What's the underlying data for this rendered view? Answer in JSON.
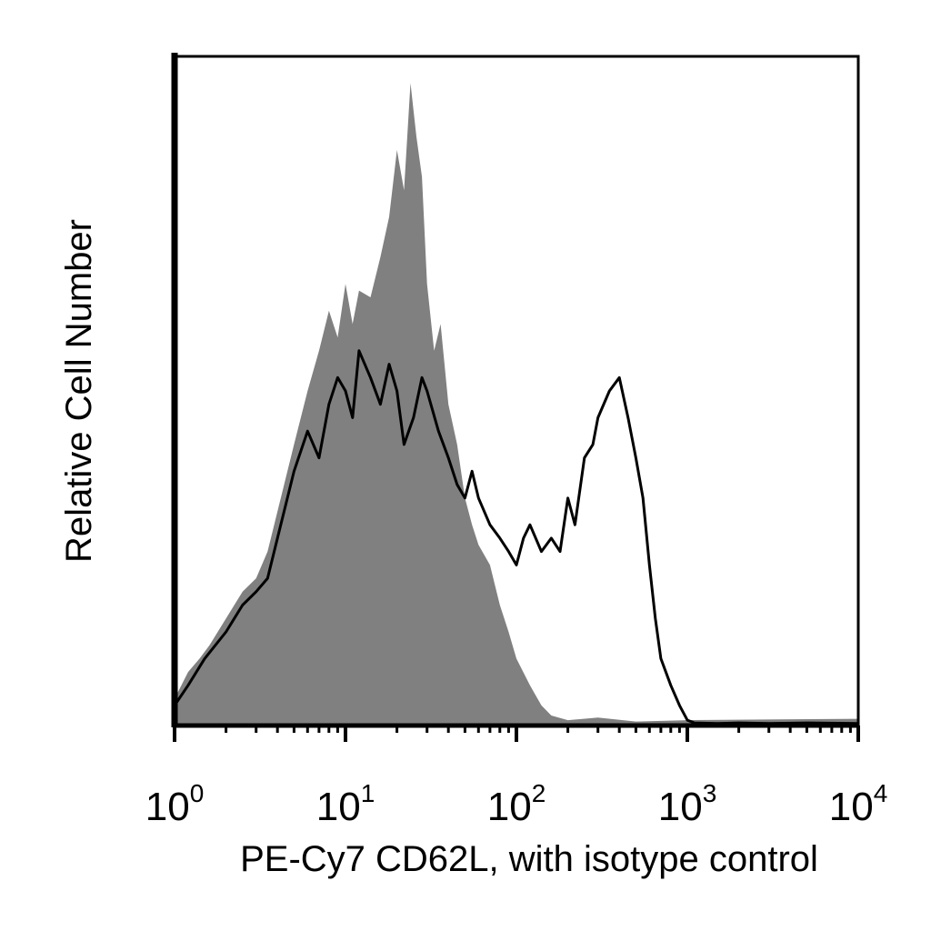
{
  "chart_data": {
    "type": "area",
    "xlabel": "PE-Cy7 CD62L, with isotype control",
    "ylabel": "Relative Cell Number",
    "x_scale": "log",
    "xlim": [
      1,
      10000
    ],
    "ylim": [
      0,
      1
    ],
    "grid": false,
    "x_ticks": [
      {
        "value": 1,
        "base": "10",
        "exp": "0"
      },
      {
        "value": 10,
        "base": "10",
        "exp": "1"
      },
      {
        "value": 100,
        "base": "10",
        "exp": "2"
      },
      {
        "value": 1000,
        "base": "10",
        "exp": "3"
      },
      {
        "value": 10000,
        "base": "10",
        "exp": "4"
      }
    ],
    "series": [
      {
        "role": "isotype control",
        "style": "filled",
        "color": "#808080",
        "x": [
          1,
          1.2,
          1.4,
          1.6,
          2,
          2.5,
          3,
          3.5,
          4,
          5,
          6,
          7,
          8,
          9,
          10,
          11,
          12,
          14,
          16,
          18,
          20,
          22,
          24,
          26,
          28,
          30,
          33,
          36,
          40,
          45,
          50,
          55,
          60,
          70,
          80,
          90,
          100,
          120,
          140,
          160,
          200,
          300,
          500,
          1000,
          10000
        ],
        "y": [
          0.04,
          0.08,
          0.1,
          0.12,
          0.16,
          0.2,
          0.22,
          0.26,
          0.32,
          0.42,
          0.5,
          0.56,
          0.62,
          0.58,
          0.66,
          0.6,
          0.65,
          0.64,
          0.7,
          0.76,
          0.86,
          0.8,
          0.96,
          0.88,
          0.82,
          0.66,
          0.56,
          0.6,
          0.48,
          0.42,
          0.34,
          0.3,
          0.27,
          0.24,
          0.18,
          0.14,
          0.1,
          0.06,
          0.03,
          0.015,
          0.008,
          0.012,
          0.006,
          0.008,
          0.01
        ]
      },
      {
        "role": "CD62L",
        "style": "line",
        "color": "#000000",
        "x": [
          1,
          1.2,
          1.5,
          2,
          2.5,
          3,
          3.5,
          4,
          5,
          6,
          7,
          8,
          9,
          10,
          11,
          12,
          14,
          16,
          18,
          20,
          22,
          25,
          28,
          30,
          35,
          40,
          45,
          50,
          55,
          60,
          70,
          80,
          90,
          100,
          110,
          120,
          140,
          160,
          180,
          200,
          220,
          250,
          280,
          300,
          350,
          400,
          450,
          500,
          550,
          600,
          650,
          700,
          800,
          900,
          1000,
          1100,
          1500,
          2000,
          3000,
          5000,
          10000
        ],
        "y": [
          0.03,
          0.06,
          0.1,
          0.14,
          0.18,
          0.2,
          0.22,
          0.28,
          0.38,
          0.44,
          0.4,
          0.48,
          0.52,
          0.5,
          0.46,
          0.56,
          0.52,
          0.48,
          0.54,
          0.5,
          0.42,
          0.46,
          0.52,
          0.5,
          0.44,
          0.4,
          0.36,
          0.34,
          0.38,
          0.34,
          0.3,
          0.28,
          0.26,
          0.24,
          0.28,
          0.3,
          0.26,
          0.28,
          0.26,
          0.34,
          0.3,
          0.4,
          0.42,
          0.46,
          0.5,
          0.52,
          0.46,
          0.4,
          0.34,
          0.24,
          0.16,
          0.1,
          0.06,
          0.03,
          0.008,
          0.004,
          0.003,
          0.004,
          0.003,
          0.004,
          0.003
        ]
      }
    ]
  }
}
